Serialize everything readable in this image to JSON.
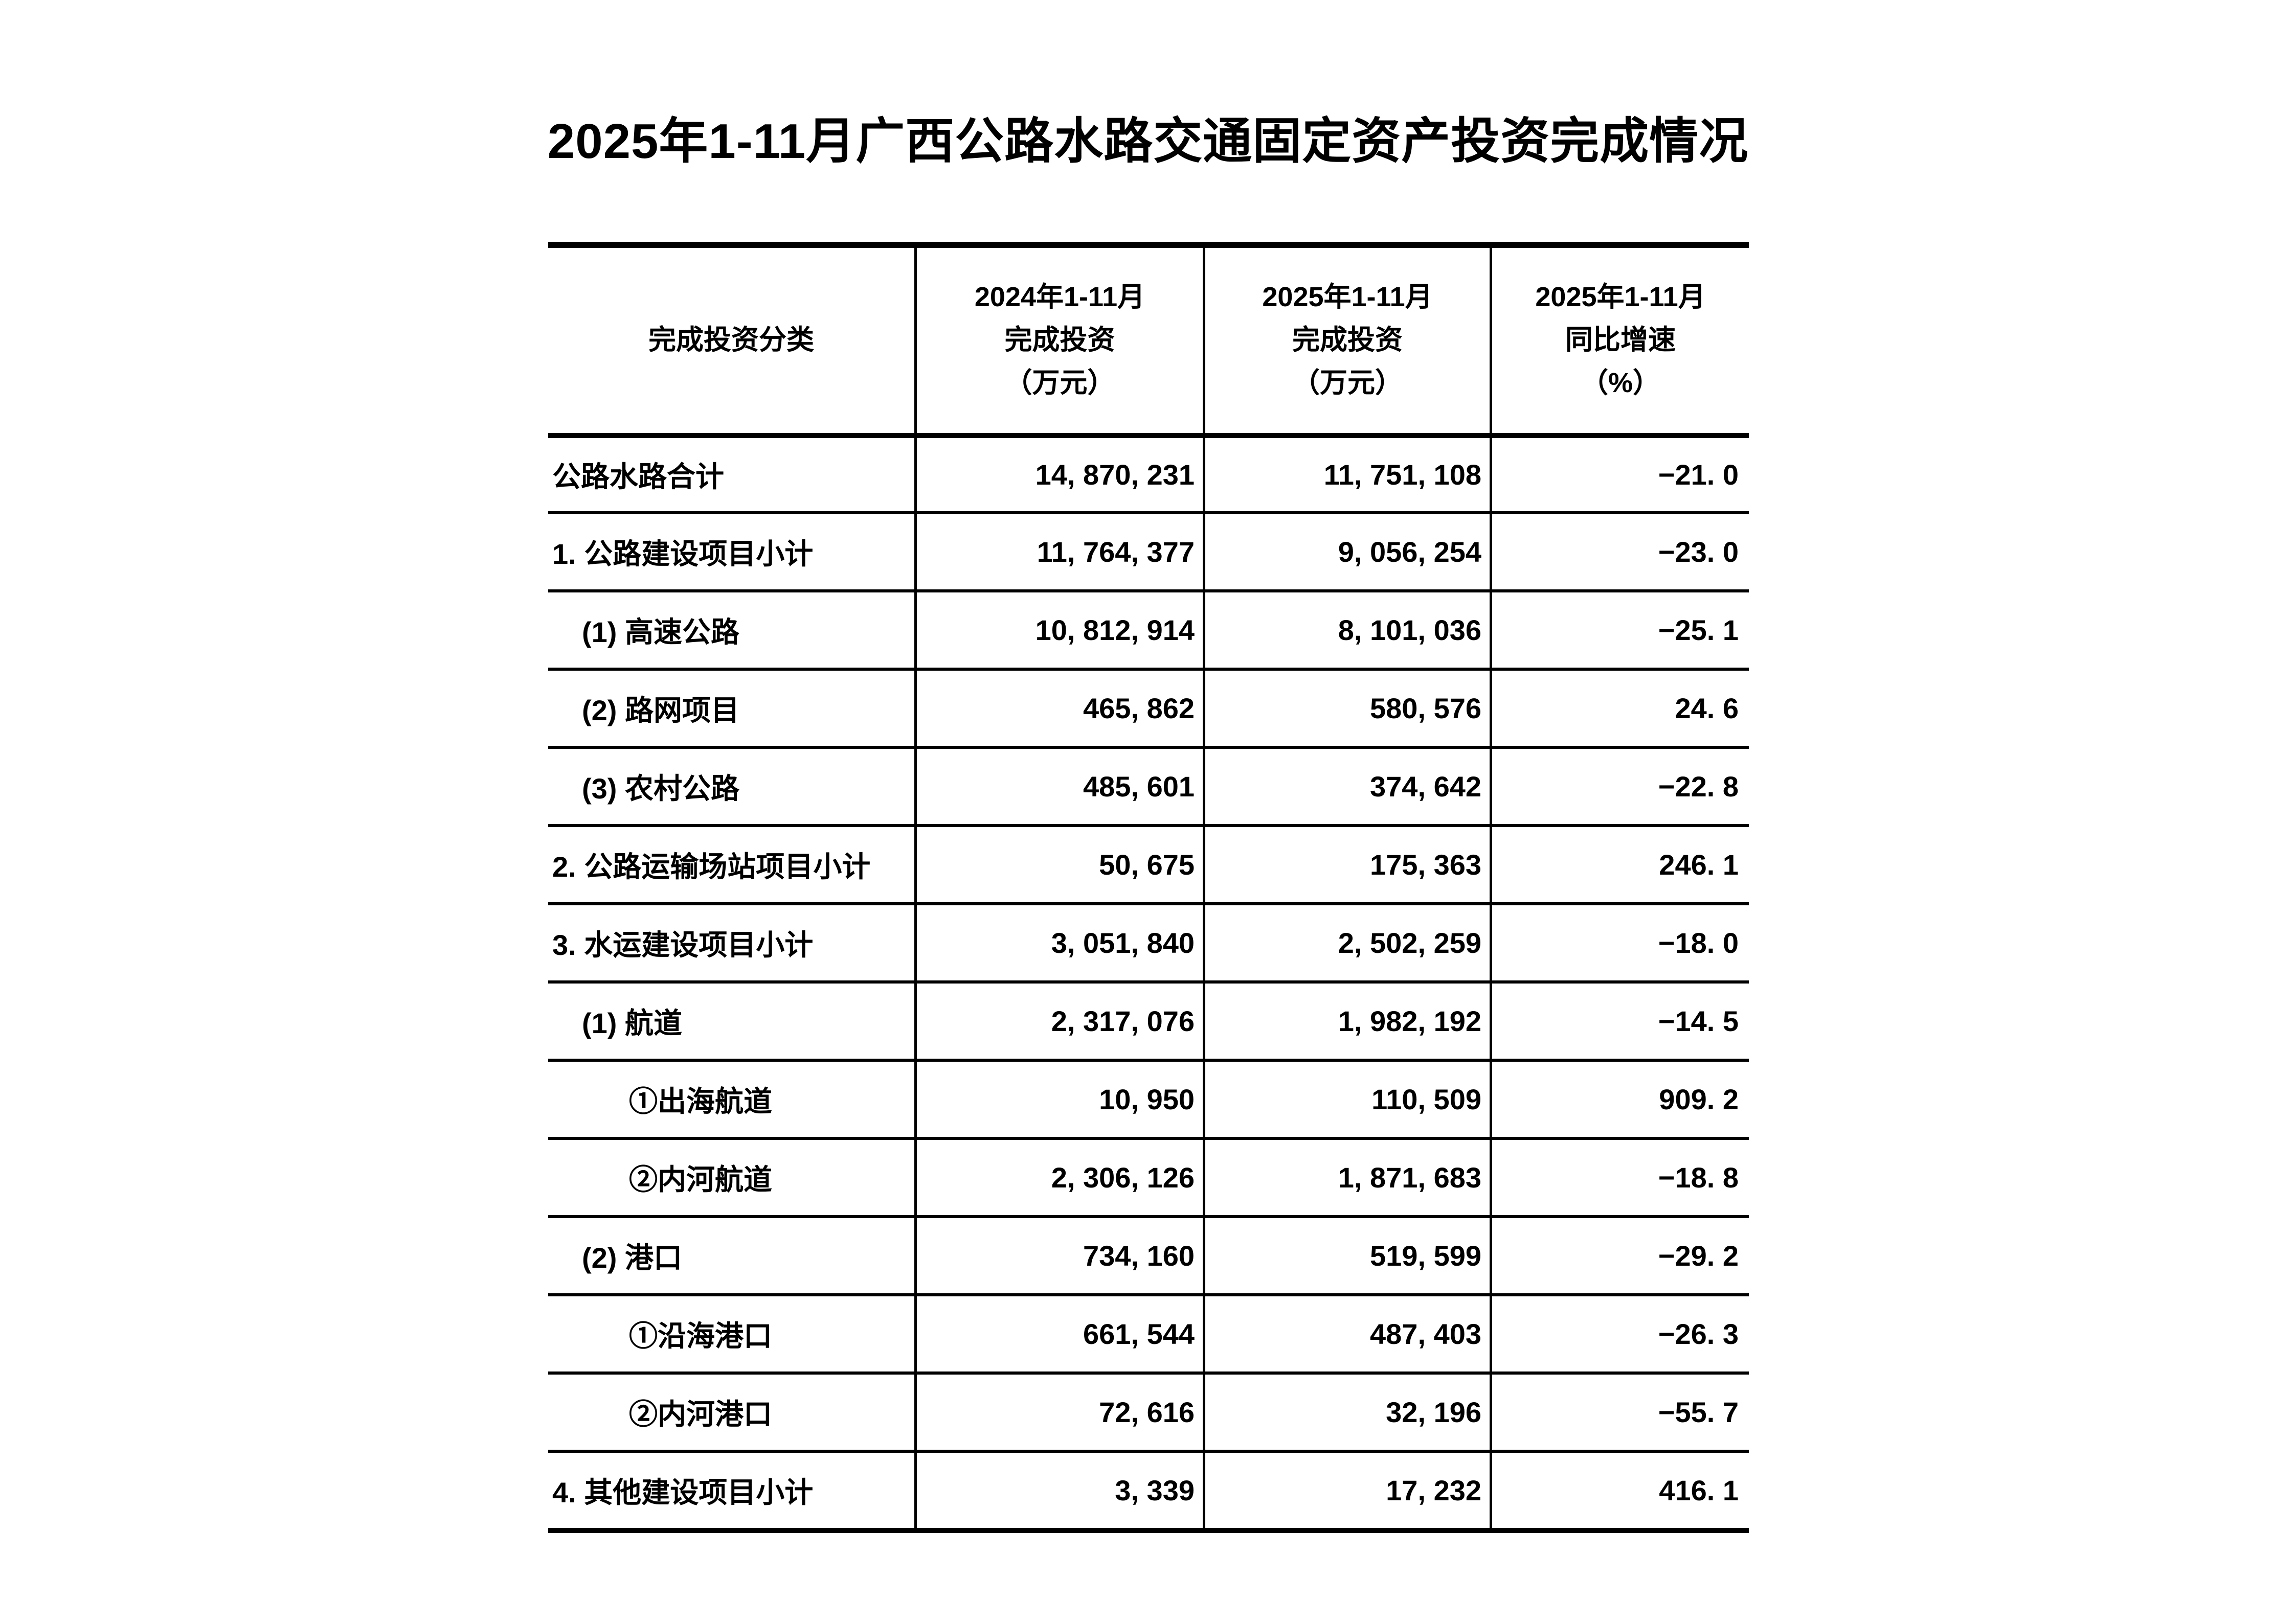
{
  "page": {
    "title": "2025年1-11月广西公路水路交通固定资产投资完成情况",
    "colors": {
      "background": "#ffffff",
      "text": "#000000",
      "border": "#000000"
    }
  },
  "table": {
    "header": {
      "category": "完成投资分类",
      "col_2024": [
        "2024年1-11月",
        "完成投资",
        "（万元）"
      ],
      "col_2025": [
        "2025年1-11月",
        "完成投资",
        "（万元）"
      ],
      "col_growth": [
        "2025年1-11月",
        "同比增速",
        "（%）"
      ]
    },
    "rows": [
      {
        "label": "公路水路合计",
        "indent": 0,
        "values": [
          "14,870,231",
          "11,751,108",
          "-21.0"
        ]
      },
      {
        "label": "1.公路建设项目小计",
        "indent": 0,
        "values": [
          "11,764,377",
          "9,056,254",
          "-23.0"
        ]
      },
      {
        "label": "(1)高速公路",
        "indent": 1,
        "values": [
          "10,812,914",
          "8,101,036",
          "-25.1"
        ]
      },
      {
        "label": "(2)路网项目",
        "indent": 1,
        "values": [
          "465,862",
          "580,576",
          "24.6"
        ]
      },
      {
        "label": "(3)农村公路",
        "indent": 1,
        "values": [
          "485,601",
          "374,642",
          "-22.8"
        ]
      },
      {
        "label": "2.公路运输场站项目小计",
        "indent": 0,
        "values": [
          "50,675",
          "175,363",
          "246.1"
        ]
      },
      {
        "label": "3.水运建设项目小计",
        "indent": 0,
        "values": [
          "3,051,840",
          "2,502,259",
          "-18.0"
        ]
      },
      {
        "label": "(1)航道",
        "indent": 1,
        "values": [
          "2,317,076",
          "1,982,192",
          "-14.5"
        ]
      },
      {
        "label": "①出海航道",
        "indent": 2,
        "values": [
          "10,950",
          "110,509",
          "909.2"
        ]
      },
      {
        "label": "②内河航道",
        "indent": 2,
        "values": [
          "2,306,126",
          "1,871,683",
          "-18.8"
        ]
      },
      {
        "label": "(2)港口",
        "indent": 1,
        "values": [
          "734,160",
          "519,599",
          "-29.2"
        ]
      },
      {
        "label": "①沿海港口",
        "indent": 2,
        "values": [
          "661,544",
          "487,403",
          "-26.3"
        ]
      },
      {
        "label": "②内河港口",
        "indent": 2,
        "values": [
          "72,616",
          "32,196",
          "-55.7"
        ]
      },
      {
        "label": "4.其他建设项目小计",
        "indent": 0,
        "values": [
          "3,339",
          "17,232",
          "416.1"
        ]
      }
    ]
  },
  "chart_data": {
    "type": "table",
    "title": "2025年1-11月广西公路水路交通固定资产投资完成情况",
    "columns": [
      "完成投资分类",
      "2024年1-11月完成投资（万元）",
      "2025年1-11月完成投资（万元）",
      "2025年1-11月同比增速（%）"
    ],
    "rows": [
      [
        "公路水路合计",
        14870231,
        11751108,
        -21.0
      ],
      [
        "1.公路建设项目小计",
        11764377,
        9056254,
        -23.0
      ],
      [
        "(1)高速公路",
        10812914,
        8101036,
        -25.1
      ],
      [
        "(2)路网项目",
        465862,
        580576,
        24.6
      ],
      [
        "(3)农村公路",
        485601,
        374642,
        -22.8
      ],
      [
        "2.公路运输场站项目小计",
        50675,
        175363,
        246.1
      ],
      [
        "3.水运建设项目小计",
        3051840,
        2502259,
        -18.0
      ],
      [
        "(1)航道",
        2317076,
        1982192,
        -14.5
      ],
      [
        "①出海航道",
        10950,
        110509,
        909.2
      ],
      [
        "②内河航道",
        2306126,
        1871683,
        -18.8
      ],
      [
        "(2)港口",
        734160,
        519599,
        -29.2
      ],
      [
        "①沿海港口",
        661544,
        487403,
        -26.3
      ],
      [
        "②内河港口",
        72616,
        32196,
        -55.7
      ],
      [
        "4.其他建设项目小计",
        3339,
        17232,
        416.1
      ]
    ]
  }
}
